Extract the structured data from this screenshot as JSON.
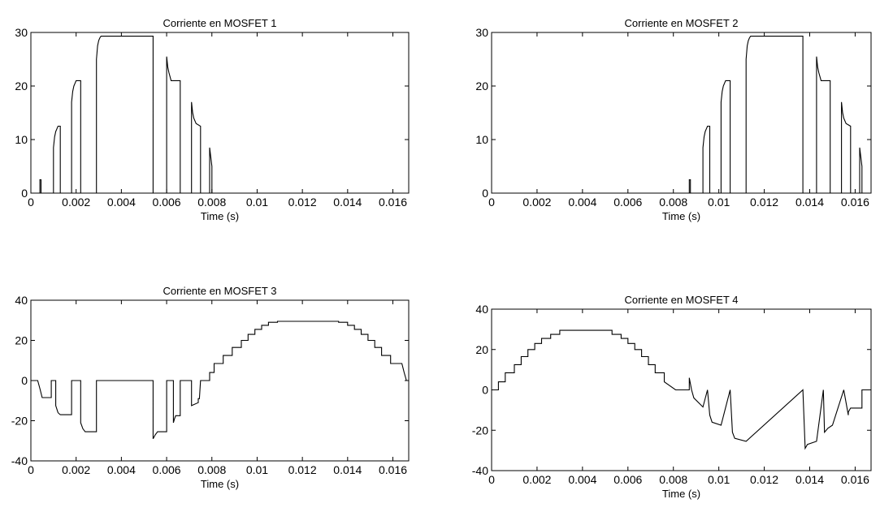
{
  "chart_data": [
    {
      "type": "line",
      "title": "Corriente en MOSFET 1",
      "xlabel": "Time (s)",
      "ylabel": "",
      "xlim": [
        0,
        0.0167
      ],
      "ylim": [
        0,
        30
      ],
      "xticks": [
        0,
        0.002,
        0.004,
        0.006,
        0.008,
        0.01,
        0.012,
        0.014,
        0.016
      ],
      "xtick_labels": [
        "0",
        "0.002",
        "0.004",
        "0.006",
        "0.008",
        "0.01",
        "0.012",
        "0.014",
        "0.016"
      ],
      "yticks": [
        0,
        10,
        20,
        30
      ],
      "ytick_labels": [
        "0",
        "10",
        "20",
        "30"
      ],
      "grid": false,
      "series": [
        {
          "x": [
            0,
            0.0004,
            0.0004,
            0.00045,
            0.00045,
            0.001,
            0.001,
            0.00105,
            0.0011,
            0.00115,
            0.0012,
            0.0013,
            0.0013,
            0.0018,
            0.0018,
            0.00185,
            0.0019,
            0.00195,
            0.002,
            0.0022,
            0.0022,
            0.0029,
            0.0029,
            0.00295,
            0.003,
            0.00305,
            0.0031,
            0.0033,
            0.0054,
            0.0054,
            0.006,
            0.006,
            0.00605,
            0.0061,
            0.0062,
            0.0066,
            0.0066,
            0.0071,
            0.0071,
            0.00715,
            0.0072,
            0.0073,
            0.0075,
            0.0075,
            0.0079,
            0.0079,
            0.008,
            0.008,
            0.0167
          ],
          "y": [
            0,
            0,
            2.5,
            2.5,
            0,
            0,
            8.5,
            10.5,
            11.5,
            12,
            12.5,
            12.5,
            0,
            0,
            17,
            19,
            20,
            20.5,
            21,
            21,
            0,
            0,
            25,
            27.5,
            28.5,
            29,
            29.3,
            29.3,
            29.3,
            0,
            0,
            25.5,
            23.5,
            22.5,
            21,
            21,
            0,
            0,
            17,
            15,
            14,
            13,
            12.5,
            0,
            0,
            8.5,
            5,
            0,
            0
          ]
        }
      ]
    },
    {
      "type": "line",
      "title": "Corriente en MOSFET 2",
      "xlabel": "Time (s)",
      "ylabel": "",
      "xlim": [
        0,
        0.0167
      ],
      "ylim": [
        0,
        30
      ],
      "xticks": [
        0,
        0.002,
        0.004,
        0.006,
        0.008,
        0.01,
        0.012,
        0.014,
        0.016
      ],
      "xtick_labels": [
        "0",
        "0.002",
        "0.004",
        "0.006",
        "0.008",
        "0.01",
        "0.012",
        "0.014",
        "0.016"
      ],
      "yticks": [
        0,
        10,
        20,
        30
      ],
      "ytick_labels": [
        "0",
        "10",
        "20",
        "30"
      ],
      "grid": false,
      "series": [
        {
          "x": [
            0,
            0.0087,
            0.0087,
            0.00875,
            0.00875,
            0.0093,
            0.0093,
            0.00935,
            0.0094,
            0.00945,
            0.0095,
            0.0096,
            0.0096,
            0.0101,
            0.0101,
            0.01015,
            0.0102,
            0.01025,
            0.0103,
            0.0105,
            0.0105,
            0.0112,
            0.0112,
            0.01125,
            0.0113,
            0.01135,
            0.0114,
            0.0116,
            0.0137,
            0.0137,
            0.0143,
            0.0143,
            0.01435,
            0.0144,
            0.0145,
            0.0149,
            0.0149,
            0.0154,
            0.0154,
            0.01545,
            0.0155,
            0.0156,
            0.0158,
            0.0158,
            0.0162,
            0.0162,
            0.0163,
            0.0163,
            0.0167
          ],
          "y": [
            0,
            0,
            2.5,
            2.5,
            0,
            0,
            8.5,
            10.5,
            11.5,
            12,
            12.5,
            12.5,
            0,
            0,
            17,
            19,
            20,
            20.5,
            21,
            21,
            0,
            0,
            25,
            27.5,
            28.5,
            29,
            29.3,
            29.3,
            29.3,
            0,
            0,
            25.5,
            23.5,
            22.5,
            21,
            21,
            0,
            0,
            17,
            15,
            14,
            13,
            12.5,
            0,
            0,
            8.5,
            5,
            0,
            0
          ]
        }
      ]
    },
    {
      "type": "line",
      "title": "Corriente en MOSFET 3",
      "xlabel": "Time (s)",
      "ylabel": "",
      "xlim": [
        0,
        0.0167
      ],
      "ylim": [
        -40,
        40
      ],
      "xticks": [
        0,
        0.002,
        0.004,
        0.006,
        0.008,
        0.01,
        0.012,
        0.014,
        0.016
      ],
      "xtick_labels": [
        "0",
        "0.002",
        "0.004",
        "0.006",
        "0.008",
        "0.01",
        "0.012",
        "0.014",
        "0.016"
      ],
      "yticks": [
        -40,
        -20,
        0,
        20,
        40
      ],
      "ytick_labels": [
        "-40",
        "-20",
        "0",
        "20",
        "40"
      ],
      "grid": false,
      "series": [
        {
          "x": [
            0,
            0.0003,
            0.0004,
            0.0005,
            0.0009,
            0.0009,
            0.0011,
            0.0011,
            0.0012,
            0.0013,
            0.0018,
            0.0018,
            0.0022,
            0.0022,
            0.0023,
            0.0024,
            0.0029,
            0.0029,
            0.0054,
            0.0054,
            0.0055,
            0.0056,
            0.006,
            0.006,
            0.0063,
            0.0063,
            0.00635,
            0.0064,
            0.0066,
            0.0066,
            0.0071,
            0.0071,
            0.0074,
            0.0074,
            0.00745,
            0.0075,
            0.0079,
            0.0079,
            0.0081,
            0.0081,
            0.0085,
            0.0085,
            0.0089,
            0.0089,
            0.0093,
            0.0093,
            0.0096,
            0.0096,
            0.0099,
            0.0099,
            0.0102,
            0.0102,
            0.0105,
            0.0105,
            0.0109,
            0.0109,
            0.0113,
            0.0113,
            0.0136,
            0.0136,
            0.014,
            0.014,
            0.0143,
            0.0143,
            0.0146,
            0.0146,
            0.0149,
            0.0149,
            0.0152,
            0.0152,
            0.0155,
            0.0155,
            0.0159,
            0.0159,
            0.0164,
            0.0165,
            0.0166,
            0.0167
          ],
          "y": [
            0,
            0,
            -4,
            -8.5,
            -8.5,
            0,
            0,
            -12.5,
            -16,
            -17,
            -17,
            0,
            0,
            -21,
            -24,
            -25.5,
            -25.5,
            0,
            0,
            -29,
            -27,
            -25.5,
            -25.5,
            0,
            0,
            -21,
            -19,
            -17.5,
            -17.5,
            0,
            0,
            -12.5,
            -11,
            -9,
            -9,
            0,
            0,
            4,
            4,
            8.5,
            8.5,
            12.5,
            12.5,
            16.5,
            16.5,
            20,
            20,
            23,
            23,
            25.5,
            25.5,
            27.5,
            27.5,
            29,
            29,
            29.5,
            29.5,
            29.5,
            29.5,
            29,
            29,
            27.5,
            27.5,
            25.5,
            25.5,
            23,
            23,
            20,
            20,
            16.5,
            16.5,
            12.5,
            12.5,
            8.5,
            8.5,
            4,
            0,
            0
          ]
        }
      ]
    },
    {
      "type": "line",
      "title": "Corriente en MOSFET 4",
      "xlabel": "Time (s)",
      "ylabel": "",
      "xlim": [
        0,
        0.0167
      ],
      "ylim": [
        -40,
        40
      ],
      "xticks": [
        0,
        0.002,
        0.004,
        0.006,
        0.008,
        0.01,
        0.012,
        0.014,
        0.016
      ],
      "xtick_labels": [
        "0",
        "0.002",
        "0.004",
        "0.006",
        "0.008",
        "0.01",
        "0.012",
        "0.014",
        "0.016"
      ],
      "yticks": [
        -40,
        -20,
        0,
        20,
        40
      ],
      "ytick_labels": [
        "-40",
        "-20",
        "0",
        "20",
        "40"
      ],
      "grid": false,
      "series": [
        {
          "x": [
            0,
            0.0003,
            0.0003,
            0.0006,
            0.0006,
            0.001,
            0.001,
            0.0013,
            0.0013,
            0.0016,
            0.0016,
            0.0019,
            0.0019,
            0.0022,
            0.0022,
            0.0026,
            0.0026,
            0.003,
            0.003,
            0.0053,
            0.0053,
            0.0057,
            0.0057,
            0.006,
            0.006,
            0.0063,
            0.0063,
            0.0066,
            0.0066,
            0.0069,
            0.0069,
            0.0072,
            0.0072,
            0.0076,
            0.0076,
            0.0081,
            0.0082,
            0.0087,
            0.0087,
            0.0088,
            0.0089,
            0.0093,
            0.0093,
            0.0095,
            0.0095,
            0.0096,
            0.0097,
            0.0101,
            0.0101,
            0.0105,
            0.0105,
            0.0106,
            0.0107,
            0.0112,
            0.0112,
            0.0137,
            0.0137,
            0.0138,
            0.0139,
            0.0143,
            0.0143,
            0.0146,
            0.0146,
            0.01465,
            0.0148,
            0.015,
            0.015,
            0.0155,
            0.0155,
            0.0157,
            0.0157,
            0.0158,
            0.0159,
            0.0163,
            0.0163,
            0.0165,
            0.0165,
            0.0167
          ],
          "y": [
            0,
            0,
            4,
            4,
            8.5,
            8.5,
            12.5,
            12.5,
            16.5,
            16.5,
            20,
            20,
            23,
            23,
            25.5,
            25.5,
            27.5,
            27.5,
            29.5,
            29.5,
            27.5,
            27.5,
            25.5,
            25.5,
            23,
            23,
            20,
            20,
            16.5,
            16.5,
            12.5,
            12.5,
            8.5,
            8.5,
            4,
            0,
            0,
            0,
            6,
            0,
            -4,
            -8.5,
            -8.5,
            0,
            0,
            -12.5,
            -16,
            -17.5,
            -17.5,
            0,
            0,
            -21,
            -24,
            -25.5,
            -25.5,
            0,
            0,
            -29,
            -27,
            -25.5,
            -25.5,
            0,
            0,
            -21,
            -19,
            -17.5,
            -17.5,
            0,
            0,
            -12.5,
            -11,
            -9,
            -9,
            -9,
            0,
            0,
            0,
            0
          ]
        }
      ]
    }
  ]
}
